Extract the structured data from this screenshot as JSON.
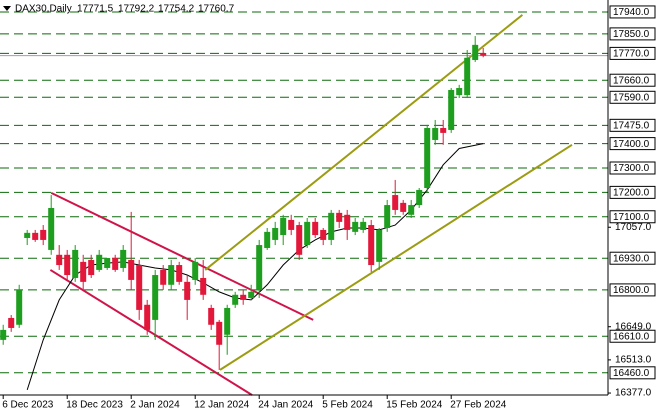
{
  "chart_data": {
    "type": "candlestick",
    "title": "DAX30,Daily",
    "categories": [
      "6 Dec 2023",
      null,
      null,
      null,
      null,
      null,
      null,
      null,
      "18 Dec 2023",
      null,
      null,
      null,
      null,
      null,
      null,
      null,
      "2 Jan 2024",
      null,
      null,
      null,
      null,
      null,
      null,
      null,
      "12 Jan 2024",
      null,
      null,
      null,
      null,
      null,
      null,
      null,
      "24 Jan 2024",
      null,
      null,
      null,
      null,
      null,
      null,
      null,
      "5 Feb 2024",
      null,
      null,
      null,
      null,
      null,
      null,
      null,
      "15 Feb 2024",
      null,
      null,
      null,
      null,
      null,
      null,
      null,
      "27 Feb 2024",
      null,
      null,
      null,
      null
    ],
    "ohlc": [
      [
        16595,
        16657,
        16575,
        16636
      ],
      [
        16685,
        16697,
        16628,
        16644
      ],
      [
        16657,
        16821,
        16644,
        16800
      ],
      [
        17013,
        17046,
        16984,
        17034
      ],
      [
        17034,
        17046,
        16997,
        17005
      ],
      [
        17046,
        17066,
        16984,
        17005
      ],
      [
        16964,
        17189,
        16944,
        17136
      ],
      [
        16944,
        16984,
        16882,
        16902
      ],
      [
        16944,
        16964,
        16841,
        16861
      ],
      [
        16849,
        16984,
        16833,
        16964
      ],
      [
        16915,
        16944,
        16800,
        16833
      ],
      [
        16923,
        16944,
        16849,
        16861
      ],
      [
        16882,
        16964,
        16874,
        16944
      ],
      [
        16890,
        16931,
        16882,
        16931
      ],
      [
        16931,
        16944,
        16874,
        16882
      ],
      [
        16890,
        16984,
        16874,
        16964
      ],
      [
        16923,
        17120,
        16800,
        16841
      ],
      [
        16902,
        16923,
        16677,
        16718
      ],
      [
        16739,
        16759,
        16616,
        16636
      ],
      [
        16677,
        16882,
        16595,
        16861
      ],
      [
        16882,
        16902,
        16800,
        16821
      ],
      [
        16821,
        16923,
        16800,
        16902
      ],
      [
        16902,
        16915,
        16821,
        16833
      ],
      [
        16833,
        16861,
        16677,
        16759
      ],
      [
        16841,
        16931,
        16821,
        16915
      ],
      [
        16849,
        16923,
        16759,
        16780
      ],
      [
        16726,
        16739,
        16636,
        16657
      ],
      [
        16669,
        16677,
        16472,
        16575
      ],
      [
        16616,
        16739,
        16534,
        16726
      ],
      [
        16739,
        16792,
        16726,
        16780
      ],
      [
        16780,
        16800,
        16739,
        16759
      ],
      [
        16767,
        16821,
        16759,
        16792
      ],
      [
        16800,
        17005,
        16767,
        16984
      ],
      [
        16972,
        17054,
        16964,
        17038
      ],
      [
        17005,
        17079,
        16984,
        17054
      ],
      [
        17025,
        17108,
        16984,
        17095
      ],
      [
        17087,
        17108,
        17025,
        17046
      ],
      [
        17066,
        17079,
        16923,
        16944
      ],
      [
        16984,
        17095,
        16972,
        17079
      ],
      [
        17079,
        17095,
        17013,
        17025
      ],
      [
        17046,
        17054,
        16984,
        17005
      ],
      [
        17005,
        17128,
        16984,
        17116
      ],
      [
        17116,
        17128,
        17054,
        17079
      ],
      [
        17108,
        17128,
        17005,
        17046
      ],
      [
        17038,
        17095,
        17025,
        17079
      ],
      [
        17046,
        17095,
        17034,
        17079
      ],
      [
        17066,
        17087,
        16874,
        16902
      ],
      [
        16915,
        17054,
        16882,
        17046
      ],
      [
        17054,
        17169,
        17038,
        17148
      ],
      [
        17189,
        17251,
        17108,
        17128
      ],
      [
        17157,
        17169,
        17108,
        17120
      ],
      [
        17108,
        17169,
        17095,
        17148
      ],
      [
        17148,
        17218,
        17136,
        17210
      ],
      [
        17218,
        17477,
        17202,
        17464
      ],
      [
        17415,
        17497,
        17395,
        17464
      ],
      [
        17464,
        17497,
        17395,
        17444
      ],
      [
        17456,
        17628,
        17444,
        17620
      ],
      [
        17599,
        17641,
        17587,
        17628
      ],
      [
        17599,
        17784,
        17587,
        17752
      ],
      [
        17743,
        17841,
        17735,
        17805
      ],
      [
        17771.5,
        17792.2,
        17754.2,
        17760.7
      ]
    ],
    "up_color": "#1e9e1e",
    "down_color": "#e3173a",
    "xlim": [
      -0.4,
      75.6
    ],
    "ylim": [
      16369,
      17989
    ],
    "levels": [
      {
        "value": 17940,
        "label": "17940.0"
      },
      {
        "value": 17850,
        "label": "17850.0"
      },
      {
        "value": 17770,
        "label": "17770.0"
      },
      {
        "value": 17660,
        "label": "17660.0"
      },
      {
        "value": 17590,
        "label": "17590.0"
      },
      {
        "value": 17475,
        "label": "17475.0"
      },
      {
        "value": 17400,
        "label": "17400.0"
      },
      {
        "value": 17300,
        "label": "17300.0"
      },
      {
        "value": 17200,
        "label": "17200.0"
      },
      {
        "value": 17100,
        "label": "17100.0"
      },
      {
        "value": 16930,
        "label": "16930.0"
      },
      {
        "value": 16800,
        "label": "16800.0"
      },
      {
        "value": 16610,
        "label": "16610.0"
      },
      {
        "value": 16460,
        "label": "16460.0"
      }
    ],
    "level_color": "#0b6b0b",
    "yticks": [
      {
        "value": 17057,
        "label": "17057.0"
      },
      {
        "value": 16649,
        "label": "16649.0"
      },
      {
        "value": 16513,
        "label": "16513.0"
      },
      {
        "value": 16377,
        "label": "16377.0"
      }
    ],
    "moving_average": {
      "color": "#000000",
      "x": [
        3,
        5,
        7,
        9,
        11,
        13,
        15,
        17,
        19,
        21,
        23,
        25,
        27,
        29,
        31,
        33,
        35,
        37,
        39,
        41,
        43,
        45,
        47,
        49,
        51,
        53,
        55,
        57,
        60
      ],
      "values": [
        16390,
        16595,
        16759,
        16861,
        16902,
        16910,
        16915,
        16902,
        16890,
        16882,
        16861,
        16829,
        16792,
        16767,
        16759,
        16821,
        16902,
        16964,
        17005,
        17038,
        17054,
        17054,
        17046,
        17066,
        17128,
        17210,
        17313,
        17380,
        17400
      ]
    },
    "trendlines": [
      {
        "color": "#d0144a",
        "x": [
          6,
          38.75
        ],
        "values": [
          17198,
          16677
        ]
      },
      {
        "color": "#d0144a",
        "x": [
          5.9,
          31.1
        ],
        "values": [
          16882,
          16369
        ]
      },
      {
        "color": "#9c9c12",
        "x": [
          25.25,
          64.9
        ],
        "values": [
          16882,
          17928
        ]
      },
      {
        "color": "#9c9c12",
        "x": [
          27.1,
          71.1
        ],
        "values": [
          16472,
          17395
        ]
      }
    ]
  }
}
